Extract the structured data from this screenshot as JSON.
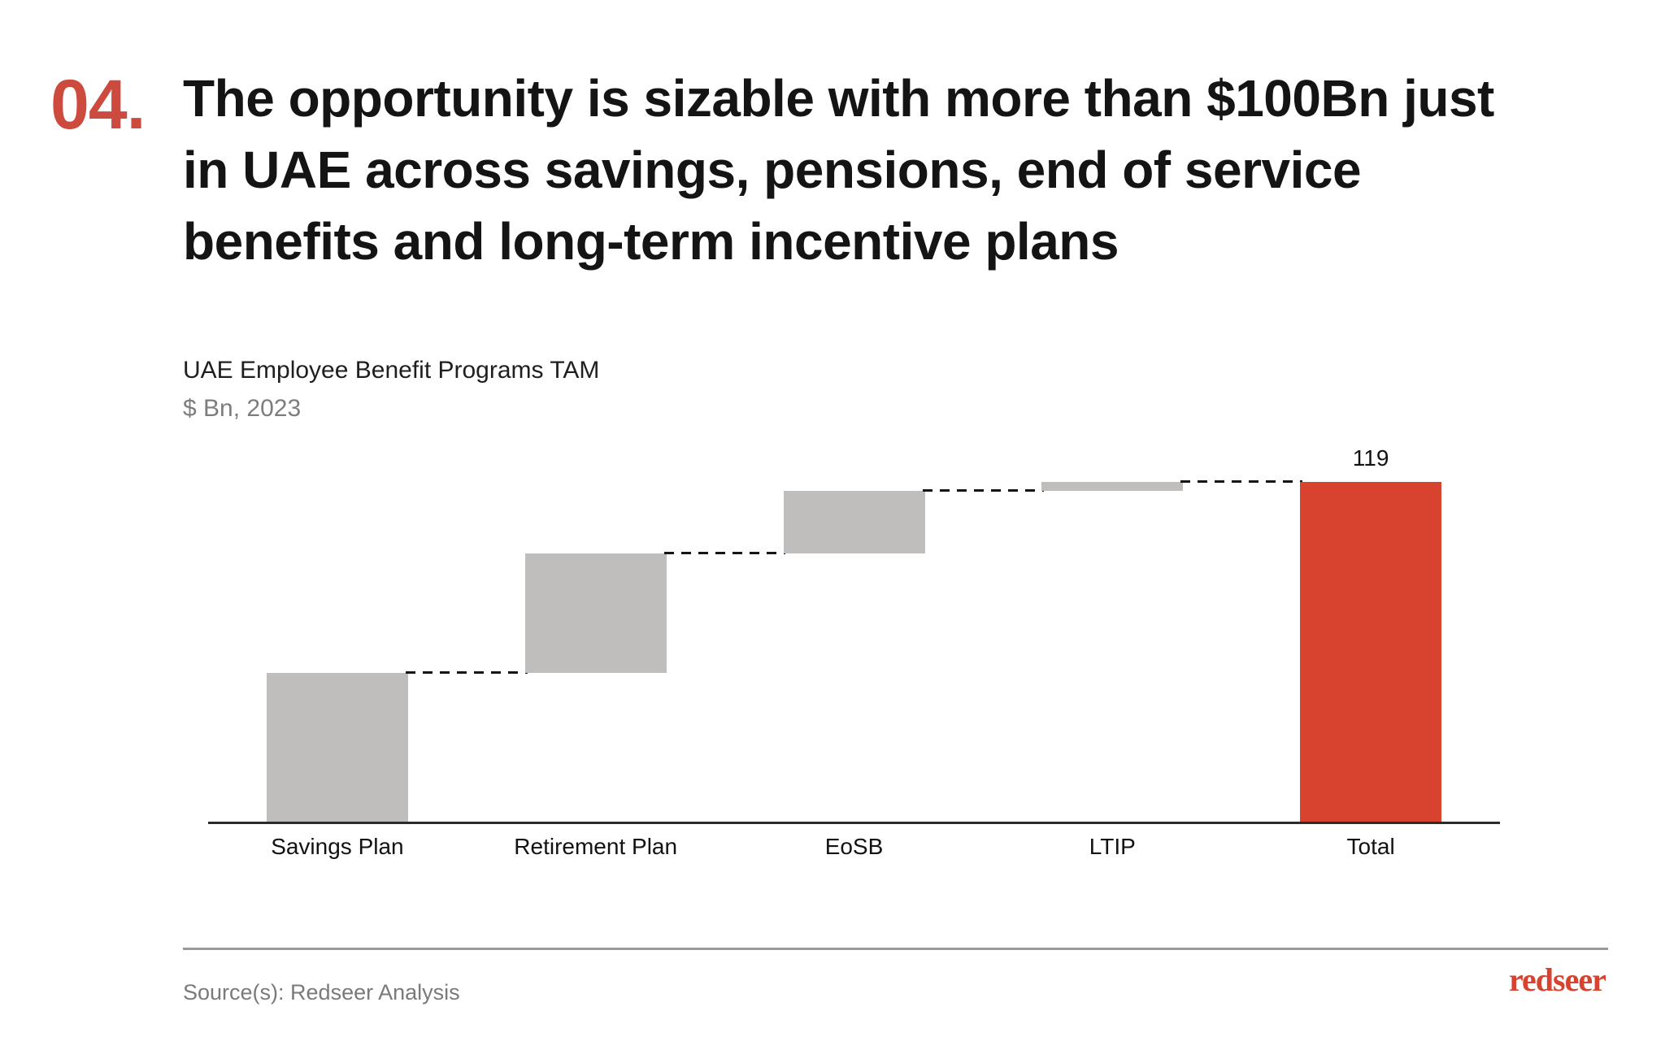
{
  "slide": {
    "number": "04.",
    "title_lines": [
      "The opportunity is sizable with more than $100Bn just",
      "in UAE across savings, pensions, end of service",
      "benefits and long-term incentive plans"
    ]
  },
  "chart_data": {
    "type": "bar",
    "subtype": "waterfall",
    "title": "UAE Employee Benefit Programs TAM",
    "subtitle_unit": "$ Bn, 2023",
    "categories": [
      "Savings Plan",
      "Retirement Plan",
      "EoSB",
      "LTIP",
      "Total"
    ],
    "values": [
      52,
      42,
      22,
      3,
      119
    ],
    "is_total": [
      false,
      false,
      false,
      false,
      true
    ],
    "data_labels": [
      "",
      "",
      "",
      "",
      "119"
    ],
    "ylim": [
      0,
      134
    ],
    "grid": false,
    "legend": false,
    "connector_style": "dashed",
    "colors": {
      "step_bar": "#bfbebc",
      "total_bar": "#d8432f",
      "connector": "#151515",
      "axis_line": "#2b2b2b"
    }
  },
  "footer": {
    "source": "Source(s): Redseer Analysis",
    "logo_text": "redseer",
    "logo_color": "#d8432f"
  }
}
